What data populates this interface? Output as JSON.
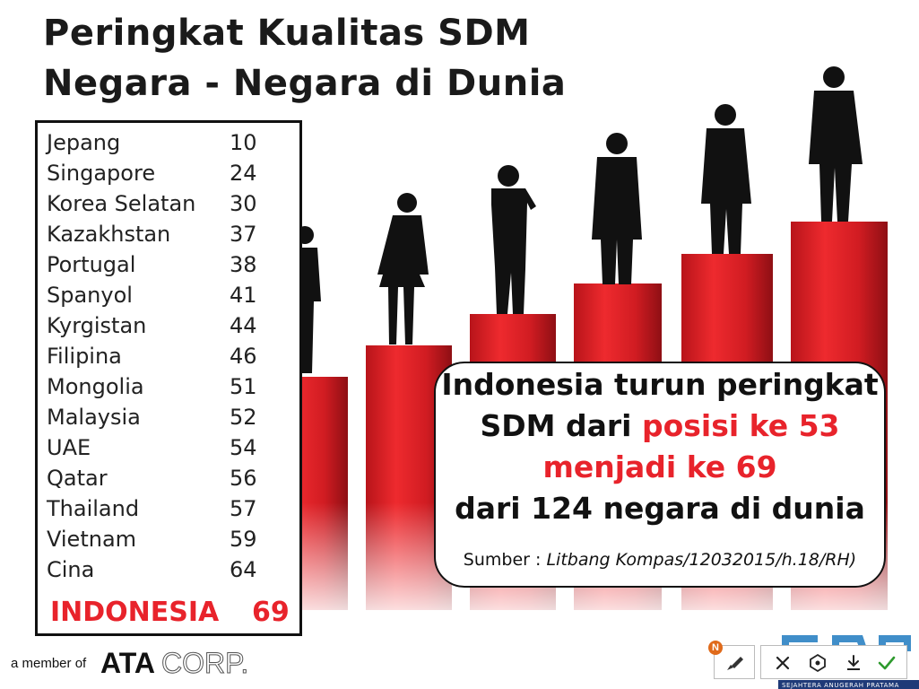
{
  "title": {
    "line1": "Peringkat Kualitas SDM",
    "line2": "Negara - Negara di Dunia"
  },
  "rankings": [
    {
      "country": "Jepang",
      "rank": "10"
    },
    {
      "country": "Singapore",
      "rank": "24"
    },
    {
      "country": "Korea Selatan",
      "rank": "30"
    },
    {
      "country": "Kazakhstan",
      "rank": "37"
    },
    {
      "country": "Portugal",
      "rank": "38"
    },
    {
      "country": "Spanyol",
      "rank": "41"
    },
    {
      "country": "Kyrgistan",
      "rank": "44"
    },
    {
      "country": "Filipina",
      "rank": "46"
    },
    {
      "country": "Mongolia",
      "rank": "51"
    },
    {
      "country": "Malaysia",
      "rank": "52"
    },
    {
      "country": "UAE",
      "rank": "54"
    },
    {
      "country": "Qatar",
      "rank": "56"
    },
    {
      "country": "Thailand",
      "rank": "57"
    },
    {
      "country": "Vietnam",
      "rank": "59"
    },
    {
      "country": "Cina",
      "rank": "64"
    }
  ],
  "highlight": {
    "country": "INDONESIA",
    "rank": "69"
  },
  "callout": {
    "line1": "Indonesia turun peringkat",
    "line2_a": "SDM dari ",
    "line2_b": "posisi ke 53",
    "line3": "menjadi ke 69",
    "line4": "dari 124 negara di dunia",
    "source_label": "Sumber : ",
    "source_value": "Litbang Kompas/12032015/h.18/RH)"
  },
  "footer": {
    "member_text": "a member of",
    "logo_text_a": "ATA",
    "logo_text_b": "CORP."
  },
  "toolbar": {
    "badge": "N",
    "corner_text": "SEJAHTERA ANUGERAH PRATAMA"
  },
  "colors": {
    "accent_red": "#e8232b",
    "text_dark": "#1a1a1a",
    "badge_orange": "#e06a1a",
    "check_green": "#2e9a2e",
    "brand_blue": "#1f7ac0"
  }
}
